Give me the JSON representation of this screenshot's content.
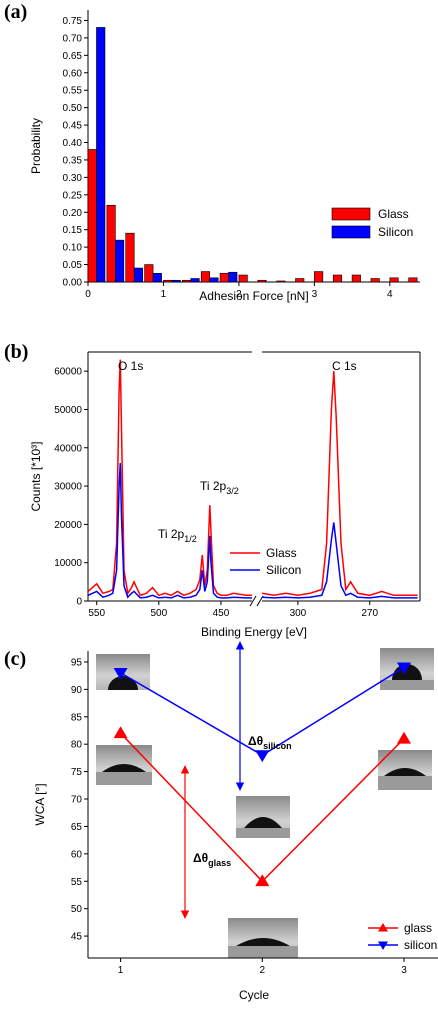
{
  "chart_data": [
    {
      "type": "bar",
      "panel_label": "(a)",
      "x_label": "Adhesion Force [nN]",
      "y_label": "Probability",
      "x": [
        0.125,
        0.375,
        0.625,
        0.875,
        1.125,
        1.375,
        1.625,
        1.875,
        2.125,
        2.375,
        2.625,
        2.875,
        3.125,
        3.375,
        3.625,
        3.875,
        4.125,
        4.375
      ],
      "series": [
        {
          "name": "Glass",
          "color": "#ff0000",
          "values": [
            0.38,
            0.22,
            0.14,
            0.05,
            0.005,
            0.005,
            0.03,
            0.025,
            0.02,
            0.005,
            0.003,
            0.01,
            0.03,
            0.02,
            0.02,
            0.01,
            0.012,
            0.012
          ]
        },
        {
          "name": "Silicon",
          "color": "#0000ff",
          "values": [
            0.73,
            0.12,
            0.04,
            0.025,
            0.005,
            0.01,
            0.012,
            0.028,
            null,
            null,
            null,
            null,
            null,
            null,
            null,
            null,
            null,
            null
          ]
        }
      ],
      "xlim": [
        0,
        4.4
      ],
      "xticks": [
        0,
        1,
        2,
        3,
        4
      ],
      "ylim": [
        0,
        0.78
      ],
      "yticks": [
        {
          "value": 0,
          "label": "0.00"
        },
        {
          "value": 0.05,
          "label": "0.05"
        },
        {
          "value": 0.1,
          "label": "0.10"
        },
        {
          "value": 0.15,
          "label": "0.15"
        },
        {
          "value": 0.2,
          "label": "0.20"
        },
        {
          "value": 0.25,
          "label": "0.25"
        },
        {
          "value": 0.3,
          "label": "0.30"
        },
        {
          "value": 0.35,
          "label": "0.35"
        },
        {
          "value": 0.4,
          "label": "0.40"
        },
        {
          "value": 0.45,
          "label": "0.45"
        },
        {
          "value": 0.5,
          "label": "0.50"
        },
        {
          "value": 0.55,
          "label": "0.55"
        },
        {
          "value": 0.6,
          "label": "0.60"
        },
        {
          "value": 0.65,
          "label": "0.65"
        },
        {
          "value": 0.7,
          "label": "0.70"
        },
        {
          "value": 0.75,
          "label": "0.75"
        }
      ],
      "legend": "right"
    },
    {
      "type": "line",
      "panel_label": "(b)",
      "x_label": "Binding Energy [eV]",
      "y_label": "Counts [*10³]",
      "x": [
        557,
        550,
        545,
        540,
        537,
        534,
        532,
        531,
        530,
        528,
        525,
        522,
        520,
        515,
        510,
        505,
        500,
        495,
        490,
        485,
        480,
        475,
        470,
        467,
        465,
        463,
        461,
        459,
        458,
        456,
        453,
        450,
        445,
        440,
        430,
        425,
        315,
        310,
        305,
        300,
        295,
        290,
        288,
        286,
        285,
        284,
        282,
        280,
        278,
        275,
        270,
        265,
        260,
        255,
        250
      ],
      "series": [
        {
          "name": "Glass",
          "color": "#ff0000",
          "values": [
            2500,
            4500,
            2000,
            2500,
            3000,
            15000,
            55000,
            63000,
            45000,
            8000,
            2000,
            3500,
            5000,
            1500,
            2000,
            3500,
            1500,
            2000,
            1500,
            2500,
            1500,
            2000,
            3000,
            5500,
            12000,
            4000,
            8000,
            25000,
            18000,
            4000,
            2000,
            1500,
            1500,
            2000,
            1500,
            1500,
            2000,
            1500,
            2000,
            1500,
            2000,
            3000,
            15000,
            50000,
            60000,
            48000,
            15000,
            3000,
            5000,
            2000,
            1500,
            2500,
            1500,
            1500,
            1500
          ]
        },
        {
          "name": "Silicon",
          "color": "#0000ff",
          "values": [
            1500,
            2500,
            1000,
            1500,
            2000,
            8000,
            30000,
            36000,
            22000,
            4000,
            1000,
            2000,
            2500,
            800,
            1000,
            1500,
            800,
            1000,
            800,
            1500,
            800,
            1000,
            1500,
            3000,
            8000,
            2500,
            5000,
            17000,
            10000,
            2000,
            1000,
            800,
            800,
            1000,
            800,
            800,
            1000,
            800,
            1000,
            800,
            1000,
            1500,
            5000,
            16000,
            20500,
            15000,
            4000,
            1500,
            2000,
            1000,
            800,
            1200,
            800,
            800,
            800
          ]
        }
      ],
      "x_segments": [
        {
          "xlim": [
            557,
            425
          ],
          "xticks": [
            550,
            500,
            450
          ]
        },
        {
          "xlim": [
            315,
            249
          ],
          "xticks": [
            300,
            270
          ]
        }
      ],
      "ylim": [
        0,
        65000
      ],
      "yticks": [
        0,
        10000,
        20000,
        30000,
        40000,
        50000,
        60000
      ],
      "annotations": [
        {
          "text": "O 1s"
        },
        {
          "text": "C 1s"
        },
        {
          "text": "Ti 2p",
          "sub": "3/2"
        },
        {
          "text": "Ti 2p",
          "sub": "1/2"
        }
      ],
      "legend": "right"
    },
    {
      "type": "line",
      "panel_label": "(c)",
      "x_label": "Cycle",
      "y_label": "WCA [°]",
      "x": [
        1,
        2,
        3
      ],
      "series": [
        {
          "name": "glass",
          "color": "#ff0000",
          "marker": "triangle-up",
          "values": [
            82,
            55,
            81
          ]
        },
        {
          "name": "silicon",
          "color": "#0000ff",
          "marker": "triangle-down",
          "values": [
            93,
            78,
            94
          ]
        }
      ],
      "xlim": [
        0.77,
        3.24
      ],
      "xticks": [
        1,
        2,
        3
      ],
      "ylim": [
        41,
        97
      ],
      "yticks": [
        45,
        50,
        55,
        60,
        65,
        70,
        75,
        80,
        85,
        90,
        95
      ],
      "annotations": [
        {
          "text": "Δθ",
          "sub": "silicon"
        },
        {
          "text": "Δθ",
          "sub": "glass"
        }
      ],
      "legend": "lower right"
    }
  ]
}
